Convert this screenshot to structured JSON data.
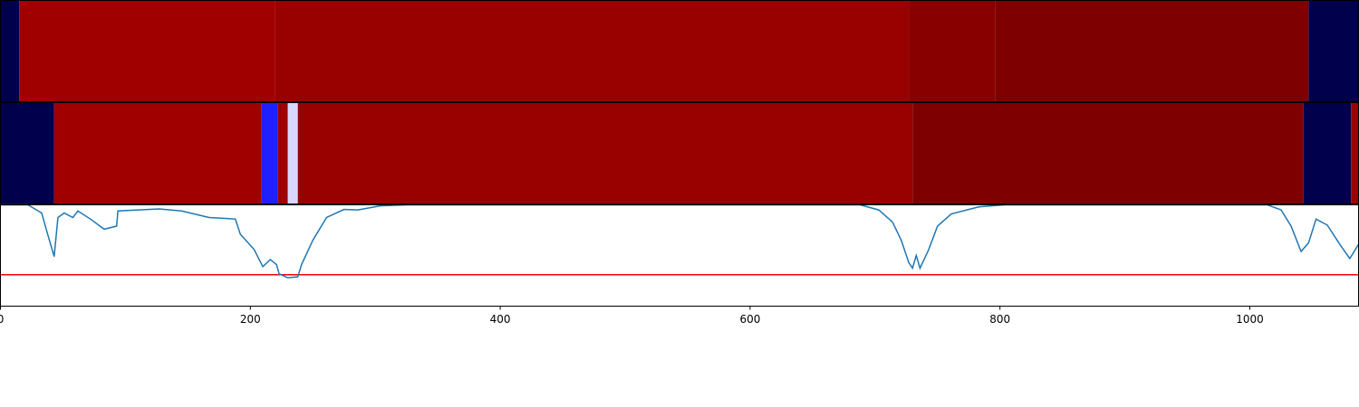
{
  "chart_data": [
    {
      "type": "heatmap",
      "xlim": [
        0,
        1087
      ],
      "bins": [
        0,
        15,
        220,
        727,
        796,
        1047,
        1087
      ],
      "colors": [
        "#00004c",
        "#a00000",
        "#990000",
        "#880000",
        "#7f0000",
        "#00004c"
      ]
    },
    {
      "type": "heatmap",
      "xlim": [
        0,
        1087
      ],
      "bins": [
        0,
        43,
        209,
        222,
        230,
        238,
        730,
        1043,
        1081,
        1087
      ],
      "colors": [
        "#00004c",
        "#a00000",
        "#2020ff",
        "#a00000",
        "#d8d8ff",
        "#990000",
        "#7f0000",
        "#00004c",
        "#a00000"
      ]
    },
    {
      "type": "line",
      "xlim": [
        0,
        1087
      ],
      "ylim": [
        0,
        1
      ],
      "xticks": [
        0,
        200,
        400,
        600,
        800,
        1000
      ],
      "x": [
        0,
        22,
        33,
        38,
        43,
        46,
        51,
        58,
        62,
        72,
        83,
        93,
        94,
        127,
        145,
        167,
        188,
        192,
        203,
        210,
        216,
        221,
        223,
        230,
        238,
        241,
        250,
        261,
        275,
        286,
        304,
        326,
        688,
        703,
        714,
        721,
        727,
        730,
        733,
        736,
        743,
        750,
        761,
        783,
        804,
        1014,
        1025,
        1033,
        1041,
        1047,
        1053,
        1062,
        1072,
        1080,
        1087
      ],
      "values": [
        1.0,
        1.0,
        0.92,
        0.7,
        0.49,
        0.875,
        0.92,
        0.875,
        0.94,
        0.86,
        0.76,
        0.79,
        0.94,
        0.96,
        0.94,
        0.875,
        0.86,
        0.71,
        0.56,
        0.39,
        0.46,
        0.41,
        0.32,
        0.28,
        0.29,
        0.41,
        0.65,
        0.875,
        0.955,
        0.95,
        0.99,
        1.0,
        1.0,
        0.95,
        0.83,
        0.65,
        0.43,
        0.375,
        0.5,
        0.375,
        0.56,
        0.79,
        0.91,
        0.98,
        1.0,
        1.0,
        0.95,
        0.79,
        0.54,
        0.625,
        0.86,
        0.8,
        0.61,
        0.47,
        0.61
      ],
      "color": "#1f77b4",
      "threshold": 0.31,
      "threshold_color": "#ff0000"
    }
  ]
}
